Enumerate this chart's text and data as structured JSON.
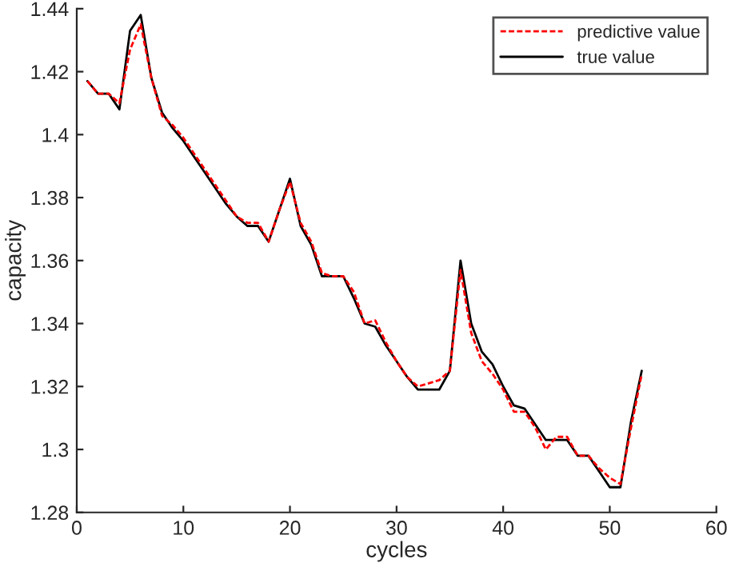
{
  "chart_data": {
    "type": "line",
    "xlabel": "cycles",
    "ylabel": "capacity",
    "x": [
      1,
      2,
      3,
      4,
      5,
      6,
      7,
      8,
      9,
      10,
      11,
      12,
      13,
      14,
      15,
      16,
      17,
      18,
      19,
      20,
      21,
      22,
      23,
      24,
      25,
      26,
      27,
      28,
      29,
      30,
      31,
      32,
      33,
      34,
      35,
      36,
      37,
      38,
      39,
      40,
      41,
      42,
      43,
      44,
      45,
      46,
      47,
      48,
      49,
      50,
      51,
      52,
      53
    ],
    "series": [
      {
        "name": "predictive value",
        "color": "#ff0000",
        "line_style": "dashed",
        "values": [
          1.417,
          1.413,
          1.413,
          1.41,
          1.427,
          1.435,
          1.418,
          1.406,
          1.403,
          1.399,
          1.394,
          1.389,
          1.384,
          1.379,
          1.374,
          1.372,
          1.372,
          1.366,
          1.376,
          1.385,
          1.372,
          1.366,
          1.356,
          1.355,
          1.355,
          1.35,
          1.34,
          1.341,
          1.334,
          1.328,
          1.323,
          1.32,
          1.321,
          1.322,
          1.325,
          1.357,
          1.337,
          1.328,
          1.324,
          1.319,
          1.312,
          1.312,
          1.307,
          1.3,
          1.304,
          1.304,
          1.298,
          1.298,
          1.294,
          1.291,
          1.289,
          1.307,
          1.324
        ]
      },
      {
        "name": "true value",
        "color": "#000000",
        "line_style": "solid",
        "values": [
          1.417,
          1.413,
          1.413,
          1.408,
          1.433,
          1.438,
          1.418,
          1.407,
          1.402,
          1.398,
          1.393,
          1.388,
          1.383,
          1.378,
          1.374,
          1.371,
          1.371,
          1.366,
          1.376,
          1.386,
          1.371,
          1.365,
          1.355,
          1.355,
          1.355,
          1.348,
          1.34,
          1.339,
          1.333,
          1.328,
          1.323,
          1.319,
          1.319,
          1.319,
          1.325,
          1.36,
          1.34,
          1.331,
          1.327,
          1.32,
          1.314,
          1.313,
          1.308,
          1.303,
          1.303,
          1.303,
          1.298,
          1.298,
          1.293,
          1.288,
          1.288,
          1.309,
          1.325
        ]
      }
    ],
    "xlim": [
      0,
      60
    ],
    "xticks": [
      0,
      10,
      20,
      30,
      40,
      50,
      60
    ],
    "ylim": [
      1.28,
      1.44
    ],
    "yticks": [
      1.28,
      1.3,
      1.32,
      1.34,
      1.36,
      1.38,
      1.4,
      1.42,
      1.44
    ],
    "grid": false,
    "legend": "top right"
  }
}
